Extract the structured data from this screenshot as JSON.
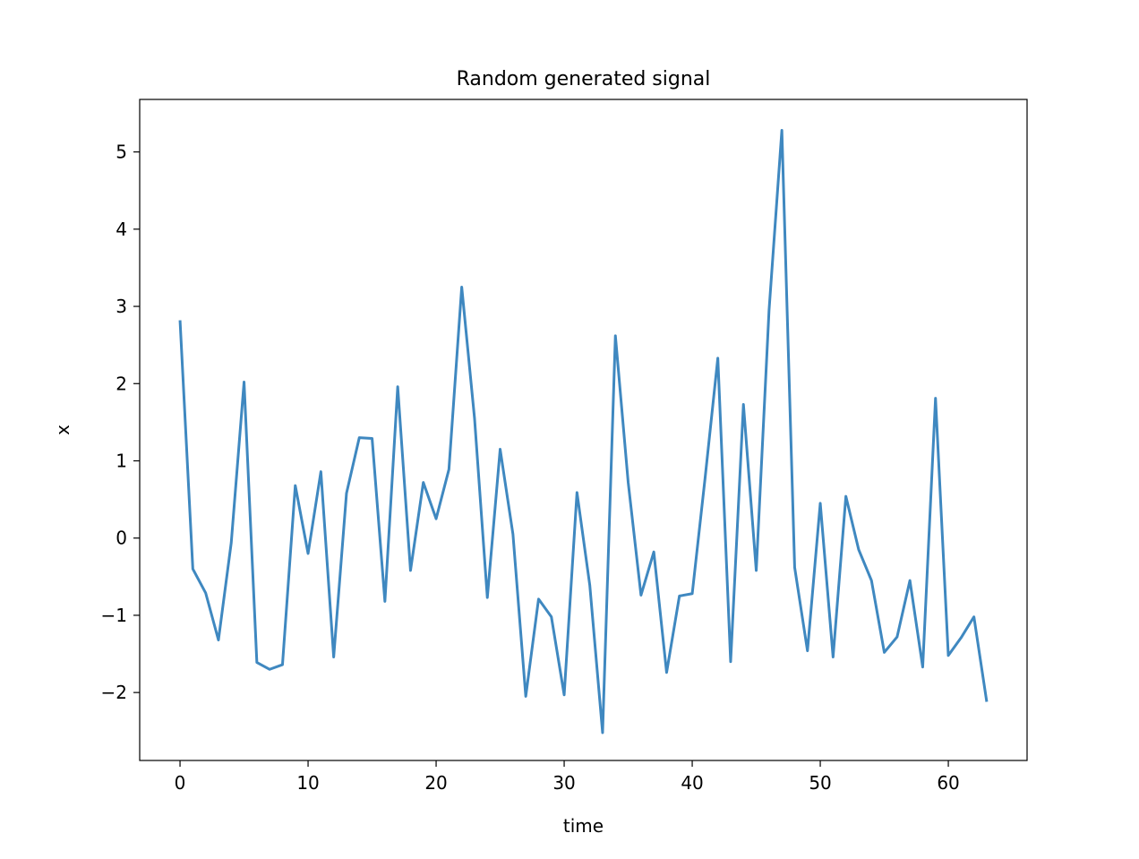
{
  "chart_data": {
    "type": "line",
    "title": "Random generated signal",
    "xlabel": "time",
    "ylabel": "x",
    "xlim": [
      -3.15,
      66.15
    ],
    "ylim": [
      -2.88,
      5.68
    ],
    "xticks": [
      0,
      10,
      20,
      30,
      40,
      50,
      60
    ],
    "yticks": [
      -2,
      -1,
      0,
      1,
      2,
      3,
      4,
      5
    ],
    "xtick_labels": [
      "0",
      "10",
      "20",
      "30",
      "40",
      "50",
      "60"
    ],
    "ytick_labels": [
      "−2",
      "−1",
      "0",
      "1",
      "2",
      "3",
      "4",
      "5"
    ],
    "grid": false,
    "series": [
      {
        "color": "#3f88c0",
        "x": [
          0,
          1,
          2,
          3,
          4,
          5,
          6,
          7,
          8,
          9,
          10,
          11,
          12,
          13,
          14,
          15,
          16,
          17,
          18,
          19,
          20,
          21,
          22,
          23,
          24,
          25,
          26,
          27,
          28,
          29,
          30,
          31,
          32,
          33,
          34,
          35,
          36,
          37,
          38,
          39,
          40,
          41,
          42,
          43,
          44,
          45,
          46,
          47,
          48,
          49,
          50,
          51,
          52,
          53,
          54,
          55,
          56,
          57,
          58,
          59,
          60,
          61,
          62,
          63
        ],
        "values": [
          2.82,
          -0.4,
          -0.71,
          -1.32,
          -0.06,
          2.02,
          -1.61,
          -1.7,
          -1.64,
          0.68,
          -0.2,
          0.86,
          -1.54,
          0.58,
          1.3,
          1.29,
          -0.82,
          1.96,
          -0.42,
          0.72,
          0.25,
          0.89,
          3.25,
          1.55,
          -0.77,
          1.15,
          0.05,
          -2.05,
          -0.79,
          -1.02,
          -2.03,
          0.59,
          -0.61,
          -2.52,
          2.62,
          0.72,
          -0.74,
          -0.18,
          -1.74,
          -0.75,
          -0.72,
          0.77,
          2.33,
          -1.6,
          1.73,
          -0.42,
          2.95,
          5.28,
          -0.38,
          -1.46,
          0.45,
          -1.54,
          0.54,
          -0.15,
          -0.55,
          -1.48,
          -1.28,
          -0.55,
          -1.67,
          1.81,
          -1.52,
          -1.29,
          -1.02,
          -2.12
        ]
      }
    ]
  }
}
